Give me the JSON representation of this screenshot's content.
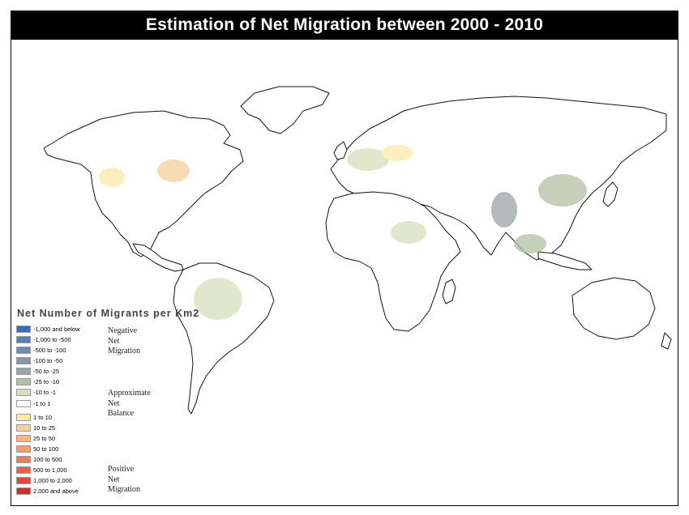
{
  "title": "Estimation of Net Migration between 2000 - 2010",
  "legend": {
    "title": "Net Number of Migrants per Km2",
    "items": [
      {
        "label": "-1,000 and below",
        "color": "#3d6db5"
      },
      {
        "label": "-1,000 to -500",
        "color": "#5c7dba"
      },
      {
        "label": "-500 to -100",
        "color": "#7189b5"
      },
      {
        "label": "-100 to -50",
        "color": "#8896ab"
      },
      {
        "label": "-50 to -25",
        "color": "#9aa6a4"
      },
      {
        "label": "-25 to -10",
        "color": "#b3bfa4"
      },
      {
        "label": "-10 to -1",
        "color": "#d6dfbc"
      },
      {
        "label": "-1 to 1",
        "color": "#ffffff"
      },
      {
        "label": "1 to 10",
        "color": "#fbe9a8"
      },
      {
        "label": "10 to 25",
        "color": "#f7d09a"
      },
      {
        "label": "25 to 50",
        "color": "#f3b784"
      },
      {
        "label": "50 to 100",
        "color": "#ef9e72"
      },
      {
        "label": "100 to 500",
        "color": "#ea8060"
      },
      {
        "label": "500 to 1,000",
        "color": "#e4624f"
      },
      {
        "label": "1,000 to 2,000",
        "color": "#dc4a42"
      },
      {
        "label": "2,000 and above",
        "color": "#cc2f32"
      }
    ],
    "groups": [
      {
        "lines": [
          "Negative",
          "Net",
          "Migration"
        ]
      },
      {
        "lines": [
          "Approximate",
          "Net",
          "Balance"
        ]
      },
      {
        "lines": [
          "Positive",
          "Net",
          "Migration"
        ]
      }
    ]
  }
}
